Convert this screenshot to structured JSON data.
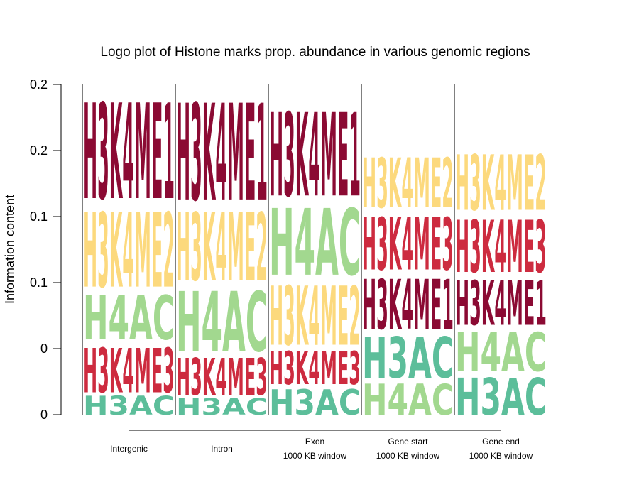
{
  "chart_data": {
    "type": "bar",
    "title": "Logo plot of Histone marks prop. abundance in various genomic regions",
    "xlabel": "",
    "ylabel": "Information content",
    "ylim": [
      0,
      0.25
    ],
    "y_ticks": [
      {
        "value": 0.0,
        "label": "0"
      },
      {
        "value": 0.05,
        "label": "0"
      },
      {
        "value": 0.1,
        "label": "0.1"
      },
      {
        "value": 0.15,
        "label": "0.1"
      },
      {
        "value": 0.2,
        "label": "0.2"
      },
      {
        "value": 0.25,
        "label": "0.2"
      }
    ],
    "categories": [
      {
        "id": "intergenic",
        "lines": [
          "Intergenic"
        ]
      },
      {
        "id": "intron",
        "lines": [
          "Intron"
        ]
      },
      {
        "id": "exon",
        "lines": [
          "Exon",
          "1000 KB window"
        ]
      },
      {
        "id": "gene-start",
        "lines": [
          "Gene start",
          "1000 KB window"
        ]
      },
      {
        "id": "gene-end",
        "lines": [
          "Gene end",
          "1000 KB window"
        ]
      }
    ],
    "series": [
      {
        "name": "H3K4ME1",
        "color": "#8b0a33"
      },
      {
        "name": "H3K4ME2",
        "color": "#fcd97d"
      },
      {
        "name": "H4AC",
        "color": "#a2d88f"
      },
      {
        "name": "H3K4ME3",
        "color": "#cd2b3f"
      },
      {
        "name": "H3AC",
        "color": "#5cbe9a"
      }
    ],
    "stacks": [
      [
        {
          "mark": "H3AC",
          "value": 0.017
        },
        {
          "mark": "H3K4ME3",
          "value": 0.04
        },
        {
          "mark": "H4AC",
          "value": 0.04
        },
        {
          "mark": "H3K4ME2",
          "value": 0.067
        },
        {
          "mark": "H3K4ME1",
          "value": 0.086
        }
      ],
      [
        {
          "mark": "H3AC",
          "value": 0.015
        },
        {
          "mark": "H3K4ME3",
          "value": 0.033
        },
        {
          "mark": "H4AC",
          "value": 0.054
        },
        {
          "mark": "H3K4ME2",
          "value": 0.061
        },
        {
          "mark": "H3K4ME1",
          "value": 0.087
        }
      ],
      [
        {
          "mark": "H3AC",
          "value": 0.023
        },
        {
          "mark": "H3K4ME3",
          "value": 0.03
        },
        {
          "mark": "H3K4ME2",
          "value": 0.053
        },
        {
          "mark": "H4AC",
          "value": 0.06
        },
        {
          "mark": "H3K4ME1",
          "value": 0.075
        }
      ],
      [
        {
          "mark": "H4AC",
          "value": 0.028
        },
        {
          "mark": "H3AC",
          "value": 0.037
        },
        {
          "mark": "H3K4ME1",
          "value": 0.045
        },
        {
          "mark": "H3K4ME3",
          "value": 0.047
        },
        {
          "mark": "H3K4ME2",
          "value": 0.045
        }
      ],
      [
        {
          "mark": "H3AC",
          "value": 0.033
        },
        {
          "mark": "H4AC",
          "value": 0.035
        },
        {
          "mark": "H3K4ME1",
          "value": 0.04
        },
        {
          "mark": "H3K4ME3",
          "value": 0.047
        },
        {
          "mark": "H3K4ME2",
          "value": 0.05
        }
      ]
    ],
    "grid": false,
    "legend": "none"
  }
}
